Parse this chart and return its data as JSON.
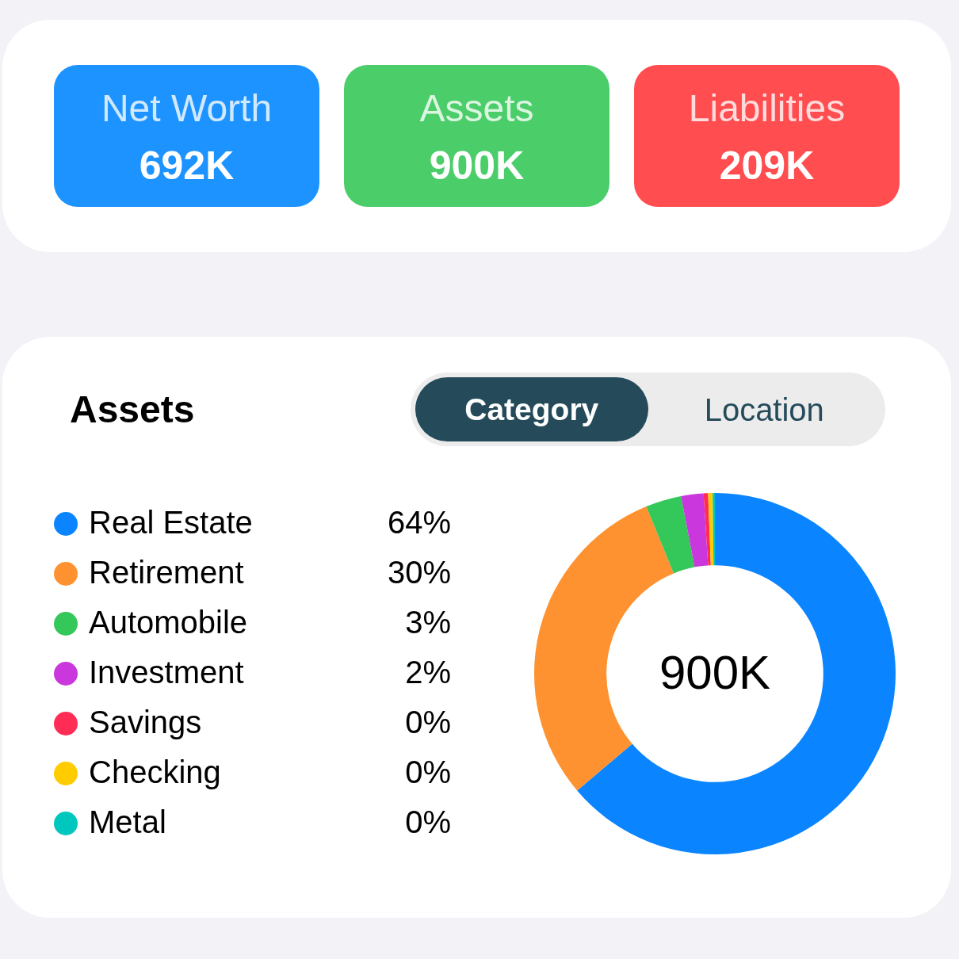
{
  "chart_data": [
    {
      "type": "other",
      "categories": [
        "Net Worth",
        "Assets",
        "Liabilities"
      ],
      "value_labels": [
        "692K",
        "900K",
        "209K"
      ],
      "colors": [
        "#1c93ff",
        "#4bcd6a",
        "#ff4d50"
      ]
    },
    {
      "type": "donut",
      "title": "Assets",
      "categories": [
        "Real Estate",
        "Retirement",
        "Automobile",
        "Investment",
        "Savings",
        "Checking",
        "Metal"
      ],
      "values": [
        63.8,
        30.0,
        3.2,
        2.0,
        0.4,
        0.4,
        0.2
      ],
      "value_labels": [
        "64%",
        "30%",
        "3%",
        "2%",
        "0%",
        "0%",
        "0%"
      ],
      "colors": [
        "#0a84ff",
        "#ff9230",
        "#34c759",
        "#c937dd",
        "#ff2d55",
        "#ffcc00",
        "#00c7be"
      ],
      "legend": "left",
      "annotations": [
        "900K",
        "Category",
        "Location"
      ]
    }
  ]
}
